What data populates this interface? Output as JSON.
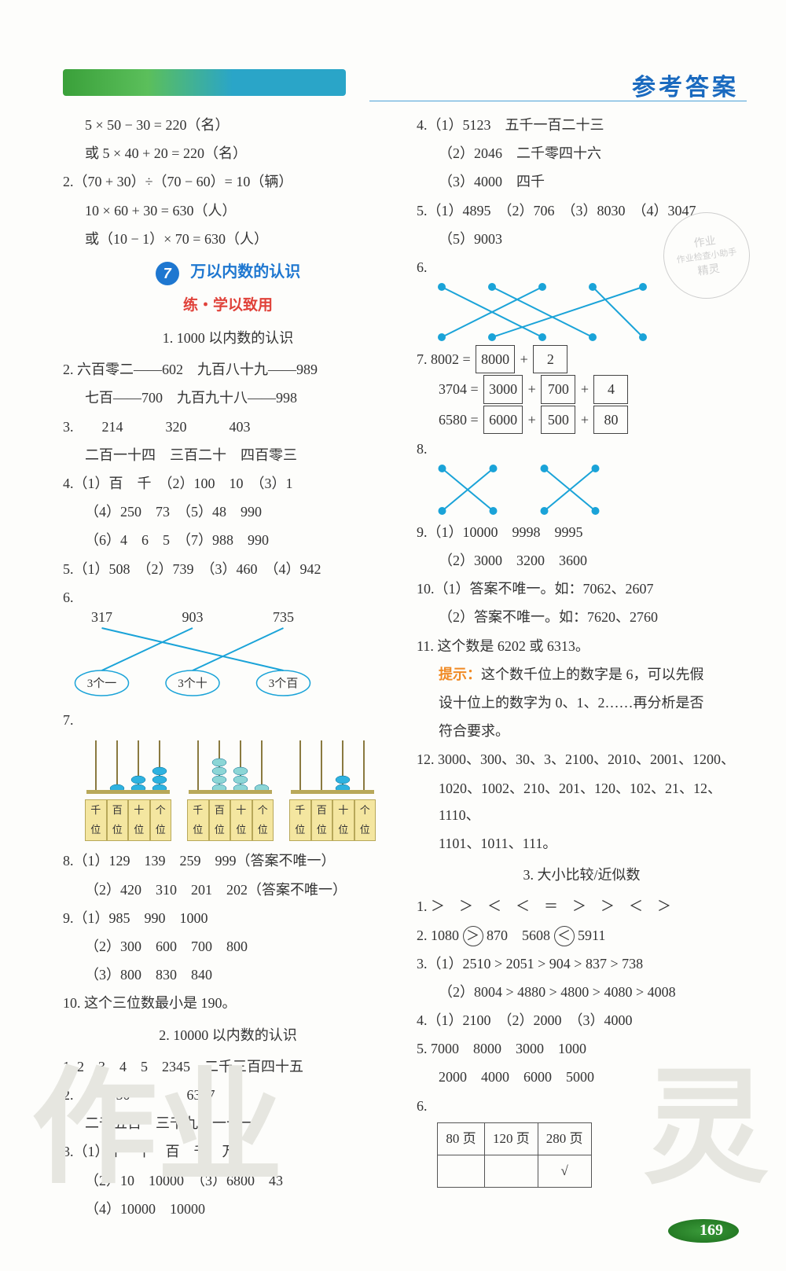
{
  "header": {
    "title": "参考答案"
  },
  "page_number": "169",
  "watermarks": {
    "left": "作业",
    "right": "灵"
  },
  "stamp": {
    "line1": "作业",
    "line2": "作业检查小助手",
    "line3": "精灵"
  },
  "left": {
    "l1": "5 × 50 − 30 = 220（名）",
    "l1b": "或 5 × 40 + 20 = 220（名）",
    "l2a": "2.（70 + 30）÷（70 − 60）= 10（辆）",
    "l2b": "10 × 60 + 30 = 630（人）",
    "l2c": "或（10 − 1）× 70 = 630（人）",
    "section": {
      "num": "7",
      "title": "万以内数的认识"
    },
    "practice": "练・学以致用",
    "sub1": "1. 1000 以内数的认识",
    "q2a": "2. 六百零二——602　九百八十九——989",
    "q2b": "七百——700　九百九十八——998",
    "q3a": "3.　　214　　　320　　　403",
    "q3b": "二百一十四　三百二十　四百零三",
    "q4a": "4.（1）百　千　（2）100　10　（3）1",
    "q4b": "（4）250　73　（5）48　990",
    "q4c": "（6）4　6　5　（7）988　990",
    "q5": "5.（1）508　（2）739　（3）460　（4）942",
    "q6_nums": [
      "317",
      "903",
      "735"
    ],
    "q6_labels": [
      "3个一",
      "3个十",
      "3个百"
    ],
    "q6_match": {
      "top_x": [
        0.15,
        0.5,
        0.85
      ],
      "bot_x": [
        0.15,
        0.5,
        0.85
      ],
      "lines": [
        [
          0,
          2
        ],
        [
          1,
          0
        ],
        [
          2,
          1
        ]
      ],
      "color": "#1aa3d8",
      "circle_border": "#1aa3d8"
    },
    "q7_label": "7.",
    "abacus": {
      "labels": [
        "千位",
        "百位",
        "十位",
        "个位"
      ],
      "beads_set": [
        [
          0,
          1,
          2,
          3
        ],
        [
          0,
          4,
          3,
          1
        ],
        [
          0,
          0,
          2,
          0
        ]
      ],
      "bead_color": [
        "#2eb2e0",
        "#8cd6d6",
        "#2eb2e0"
      ],
      "label_bg": "#f4e6a0"
    },
    "q8a": "8.（1）129　139　259　999（答案不唯一）",
    "q8b": "（2）420　310　201　202（答案不唯一）",
    "q9a": "9.（1）985　990　1000",
    "q9b": "（2）300　600　700　800",
    "q9c": "（3）800　830　840",
    "q10": "10. 这个三位数最小是 190。",
    "sub2": "2. 10000 以内数的认识",
    "b1": "1. 2　3　4　5　2345　二千三百四十五",
    "b2a": "2.　　9550　　　　6397",
    "b2b": "二千五百　三千九百一十一",
    "b3a": "3.（1）个　十　百　千　万",
    "b3b": "（2）10　10000　（3）6800　43",
    "b3c": "（4）10000　10000"
  },
  "right": {
    "q4a": "4.（1）5123　五千一百二十三",
    "q4b": "（2）2046　二千零四十六",
    "q4c": "（3）4000　四千",
    "q5a": "5.（1）4895　（2）706　（3）8030　（4）3047",
    "q5b": "（5）9003",
    "q6_label": "6.",
    "match6": {
      "top_count": 5,
      "bot_count": 5,
      "lines": [
        [
          0,
          2
        ],
        [
          1,
          3
        ],
        [
          2,
          0
        ],
        [
          3,
          4
        ],
        [
          4,
          1
        ]
      ],
      "dot_color": "#1aa3d8",
      "line_color": "#1aa3d8"
    },
    "q7_label": "7. 8002 = ",
    "q7_boxes1": [
      "8000",
      "2"
    ],
    "q7_line2a": "3704 = ",
    "q7_boxes2": [
      "3000",
      "700",
      "4"
    ],
    "q7_line3a": "6580 = ",
    "q7_boxes3": [
      "6000",
      "500",
      "80"
    ],
    "q8_label": "8.",
    "match8": {
      "groups": 2,
      "top_per": 2,
      "bot_per": 2,
      "lines": [
        [
          0,
          1
        ],
        [
          1,
          0
        ],
        [
          2,
          3
        ],
        [
          3,
          2
        ]
      ],
      "dot_color": "#1aa3d8",
      "line_color": "#1aa3d8"
    },
    "q9a": "9.（1）10000　9998　9995",
    "q9b": "（2）3000　3200　3600",
    "q10a": "10.（1）答案不唯一。如：7062、2607",
    "q10b": "（2）答案不唯一。如：7620、2760",
    "q11a": "11. 这个数是 6202 或 6313。",
    "hint_label": "提示：",
    "q11b": "这个数千位上的数字是 6，可以先假",
    "q11c": "设十位上的数字为 0、1、2……再分析是否",
    "q11d": "符合要求。",
    "q12a": "12. 3000、300、30、3、2100、2010、2001、1200、",
    "q12b": "1020、1002、210、201、120、102、21、12、1110、",
    "q12c": "1101、1011、111。",
    "sub3": "3. 大小比较/近似数",
    "c1": "1. ＞　＞　＜　＜　＝　＞　＞　＜　＞",
    "c2a": "2. 1080 ",
    "c2_gt": "＞",
    "c2b": " 870　5608 ",
    "c2_lt": "＜",
    "c2c": " 5911",
    "c3a": "3.（1）2510 > 2051 > 904 > 837 > 738",
    "c3b": "（2）8004 > 4880 > 4800 > 4080 > 4008",
    "c4": "4.（1）2100　（2）2000　（3）4000",
    "c5a": "5. 7000　8000　3000　1000",
    "c5b": "2000　4000　6000　5000",
    "c6_label": "6.",
    "table6": {
      "headers": [
        "80 页",
        "120 页",
        "280 页"
      ],
      "row2": [
        "",
        "",
        "√"
      ]
    }
  }
}
